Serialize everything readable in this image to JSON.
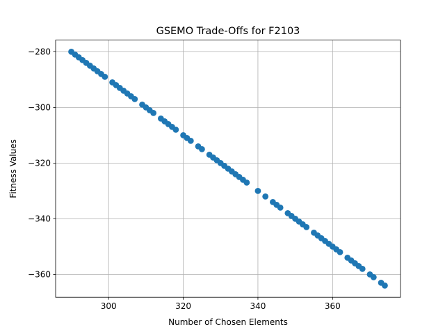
{
  "chart_data": {
    "type": "scatter",
    "title": "GSEMO Trade-Offs for F2103",
    "xlabel": "Number of Chosen Elements",
    "ylabel": "Fitness Values",
    "xlim": [
      285.8,
      378.2
    ],
    "ylim": [
      -368.2,
      -275.8
    ],
    "xticks": [
      300,
      320,
      340,
      360
    ],
    "xtick_labels": [
      "300",
      "320",
      "340",
      "360"
    ],
    "yticks": [
      -280,
      -300,
      -320,
      -340,
      -360
    ],
    "ytick_labels": [
      "−280",
      "−300",
      "−320",
      "−340",
      "−360"
    ],
    "grid": true,
    "series": [
      {
        "name": "trade-offs",
        "color": "#1f77b4",
        "x": [
          290,
          291,
          292,
          293,
          294,
          295,
          296,
          297,
          298,
          299,
          301,
          302,
          303,
          304,
          305,
          306,
          307,
          309,
          310,
          311,
          312,
          314,
          315,
          316,
          317,
          318,
          320,
          321,
          322,
          324,
          325,
          327,
          328,
          329,
          330,
          331,
          332,
          333,
          334,
          335,
          336,
          337,
          340,
          342,
          344,
          345,
          346,
          348,
          349,
          350,
          351,
          352,
          353,
          355,
          356,
          357,
          358,
          359,
          360,
          361,
          362,
          364,
          365,
          366,
          367,
          368,
          370,
          371,
          373,
          374
        ],
        "y": [
          -280,
          -281,
          -282,
          -283,
          -284,
          -285,
          -286,
          -287,
          -288,
          -289,
          -291,
          -292,
          -293,
          -294,
          -295,
          -296,
          -297,
          -299,
          -300,
          -301,
          -302,
          -304,
          -305,
          -306,
          -307,
          -308,
          -310,
          -311,
          -312,
          -314,
          -315,
          -317,
          -318,
          -319,
          -320,
          -321,
          -322,
          -323,
          -324,
          -325,
          -326,
          -327,
          -330,
          -332,
          -334,
          -335,
          -336,
          -338,
          -339,
          -340,
          -341,
          -342,
          -343,
          -345,
          -346,
          -347,
          -348,
          -349,
          -350,
          -351,
          -352,
          -354,
          -355,
          -356,
          -357,
          -358,
          -360,
          -361,
          -363,
          -364
        ]
      }
    ]
  }
}
